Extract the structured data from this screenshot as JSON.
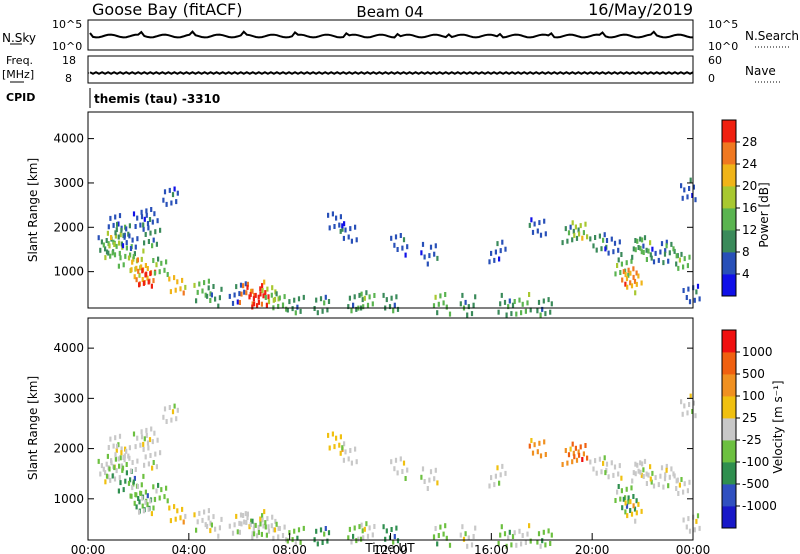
{
  "header": {
    "station": "Goose Bay (fitACF)",
    "beam": "Beam 04",
    "date": "16/May/2019"
  },
  "summary_panels": {
    "nsky_label": "N.Sky",
    "nsky_ticks": [
      "10^5",
      "10^0"
    ],
    "nsearch_label": "N.Search",
    "nsearch_ticks": [
      "10^5",
      "10^0"
    ],
    "freq_label": "Freq.",
    "freq_unit": "[MHz]",
    "freq_ticks": [
      "18",
      "8"
    ],
    "nave_label": "Nave",
    "nave_ticks": [
      "60",
      "0"
    ],
    "cpid_label": "CPID",
    "cpid_text": "themis (tau) -3310"
  },
  "chart_data": [
    {
      "type": "heatmap",
      "name": "power",
      "ylabel": "Slant Range [km]",
      "xlabel": "",
      "yticks": [
        "1000",
        "2000",
        "3000",
        "4000"
      ],
      "ylim": [
        180,
        4600
      ],
      "xlim": [
        0,
        24
      ],
      "colorbar_label": "Power [dB]",
      "colorbar_ticks": [
        "4",
        "8",
        "12",
        "16",
        "20",
        "24",
        "28"
      ],
      "colorbar_colors": [
        "#1010e8",
        "#2850b8",
        "#3a8a5a",
        "#5ab450",
        "#a8c830",
        "#f0b418",
        "#f07820",
        "#f02010"
      ],
      "cells": [
        [
          0.7,
          1600,
          2
        ],
        [
          0.9,
          1500,
          3
        ],
        [
          1.0,
          1700,
          4
        ],
        [
          1.1,
          2100,
          1
        ],
        [
          1.3,
          1900,
          2
        ],
        [
          1.5,
          1400,
          3
        ],
        [
          1.6,
          1800,
          1
        ],
        [
          1.9,
          1300,
          4
        ],
        [
          2.0,
          1100,
          5
        ],
        [
          2.2,
          1000,
          6
        ],
        [
          2.3,
          950,
          7
        ],
        [
          2.1,
          2200,
          1
        ],
        [
          2.4,
          2300,
          1
        ],
        [
          2.8,
          1150,
          3
        ],
        [
          2.5,
          1800,
          2
        ],
        [
          3.2,
          2700,
          1
        ],
        [
          3.5,
          700,
          5
        ],
        [
          4.5,
          620,
          3
        ],
        [
          5.0,
          500,
          2
        ],
        [
          5.9,
          560,
          1
        ],
        [
          6.3,
          550,
          6
        ],
        [
          6.6,
          480,
          7
        ],
        [
          6.8,
          520,
          7
        ],
        [
          7.2,
          600,
          4
        ],
        [
          7.5,
          430,
          3
        ],
        [
          8.2,
          350,
          2
        ],
        [
          9.2,
          320,
          2
        ],
        [
          9.8,
          2200,
          1
        ],
        [
          10.3,
          1900,
          1
        ],
        [
          10.6,
          330,
          2
        ],
        [
          11.0,
          360,
          3
        ],
        [
          12.0,
          300,
          2
        ],
        [
          12.3,
          1650,
          1
        ],
        [
          13.5,
          1450,
          1
        ],
        [
          14.0,
          320,
          3
        ],
        [
          15.0,
          300,
          2
        ],
        [
          16.2,
          1500,
          1
        ],
        [
          16.5,
          300,
          2
        ],
        [
          17.2,
          320,
          3
        ],
        [
          17.8,
          2100,
          1
        ],
        [
          18.1,
          300,
          2
        ],
        [
          19.1,
          1900,
          2
        ],
        [
          19.5,
          2000,
          4
        ],
        [
          20.2,
          1700,
          2
        ],
        [
          20.8,
          1600,
          1
        ],
        [
          21.2,
          1100,
          3
        ],
        [
          21.4,
          900,
          6
        ],
        [
          21.6,
          800,
          5
        ],
        [
          21.8,
          1600,
          2
        ],
        [
          22.0,
          1550,
          3
        ],
        [
          22.6,
          1500,
          1
        ],
        [
          23.1,
          1450,
          2
        ],
        [
          23.5,
          1350,
          3
        ],
        [
          23.8,
          2900,
          1
        ],
        [
          23.9,
          600,
          1
        ]
      ]
    },
    {
      "type": "heatmap",
      "name": "velocity",
      "ylabel": "Slant Range [km]",
      "xlabel": "Time UT",
      "xticks": [
        "00:00",
        "04:00",
        "08:00",
        "12:00",
        "16:00",
        "20:00",
        "00:00"
      ],
      "yticks": [
        "1000",
        "2000",
        "3000",
        "4000"
      ],
      "ylim": [
        180,
        4600
      ],
      "xlim": [
        0,
        24
      ],
      "colorbar_label": "Velocity [m s⁻¹]",
      "colorbar_ticks": [
        "1000",
        "500",
        "100",
        "25",
        "-25",
        "-100",
        "-500",
        "-1000"
      ],
      "colorbar_colors": [
        "#1818c8",
        "#3050c0",
        "#2f8f4f",
        "#6cc040",
        "#c8c8c8",
        "#f0c010",
        "#f09020",
        "#f06010",
        "#f01010"
      ],
      "cells": [
        [
          0.7,
          1600,
          4
        ],
        [
          0.9,
          1500,
          4
        ],
        [
          1.0,
          1700,
          3
        ],
        [
          1.1,
          2100,
          4
        ],
        [
          1.3,
          1900,
          4
        ],
        [
          1.5,
          1400,
          2
        ],
        [
          1.6,
          1800,
          4
        ],
        [
          1.9,
          1300,
          3
        ],
        [
          2.0,
          1100,
          3
        ],
        [
          2.2,
          1000,
          2
        ],
        [
          2.3,
          950,
          4
        ],
        [
          2.1,
          2200,
          4
        ],
        [
          2.4,
          2300,
          4
        ],
        [
          2.8,
          1150,
          3
        ],
        [
          2.5,
          1800,
          4
        ],
        [
          3.2,
          2700,
          4
        ],
        [
          3.5,
          700,
          5
        ],
        [
          4.5,
          620,
          4
        ],
        [
          5.0,
          500,
          4
        ],
        [
          5.9,
          560,
          4
        ],
        [
          6.3,
          550,
          4
        ],
        [
          6.6,
          480,
          4
        ],
        [
          6.8,
          520,
          3
        ],
        [
          7.2,
          600,
          4
        ],
        [
          7.5,
          430,
          4
        ],
        [
          8.2,
          350,
          3
        ],
        [
          9.2,
          320,
          2
        ],
        [
          9.8,
          2200,
          5
        ],
        [
          10.3,
          1900,
          4
        ],
        [
          10.6,
          330,
          3
        ],
        [
          11.0,
          360,
          4
        ],
        [
          12.0,
          300,
          2
        ],
        [
          12.3,
          1650,
          4
        ],
        [
          13.5,
          1450,
          4
        ],
        [
          14.0,
          320,
          3
        ],
        [
          15.0,
          300,
          4
        ],
        [
          16.2,
          1500,
          4
        ],
        [
          16.5,
          300,
          3
        ],
        [
          17.2,
          320,
          4
        ],
        [
          17.8,
          2100,
          6
        ],
        [
          18.1,
          300,
          3
        ],
        [
          19.1,
          1900,
          6
        ],
        [
          19.5,
          2000,
          7
        ],
        [
          20.2,
          1700,
          4
        ],
        [
          20.8,
          1600,
          4
        ],
        [
          21.2,
          1100,
          3
        ],
        [
          21.4,
          900,
          2
        ],
        [
          21.6,
          800,
          5
        ],
        [
          21.8,
          1600,
          4
        ],
        [
          22.0,
          1550,
          4
        ],
        [
          22.6,
          1500,
          4
        ],
        [
          23.1,
          1450,
          4
        ],
        [
          23.5,
          1350,
          4
        ],
        [
          23.8,
          2900,
          4
        ],
        [
          23.9,
          600,
          4
        ]
      ]
    }
  ]
}
